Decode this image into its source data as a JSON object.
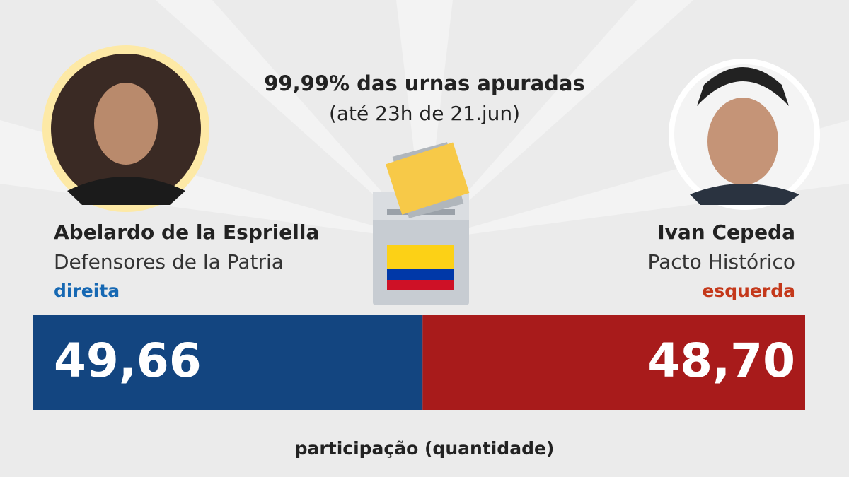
{
  "header": {
    "title": "99,99% das urnas apuradas",
    "subtitle": "(até 23h de 21.jun)"
  },
  "chart_data": {
    "type": "bar",
    "xlabel": "participação (quantidade)",
    "series": [
      {
        "name": "Abelardo de la Espriella",
        "party": "Defensores de la Patria",
        "orientation": "direita",
        "color": "#134580",
        "label_color": "#1668b3",
        "values": [
          49.66
        ],
        "value_labels": [
          "49,66"
        ]
      },
      {
        "name": "Ivan Cepeda",
        "party": "Pacto Histórico",
        "orientation": "esquerda",
        "color": "#a81b1b",
        "label_color": "#c4381a",
        "values": [
          48.7
        ],
        "value_labels": [
          "48,70"
        ]
      }
    ]
  }
}
